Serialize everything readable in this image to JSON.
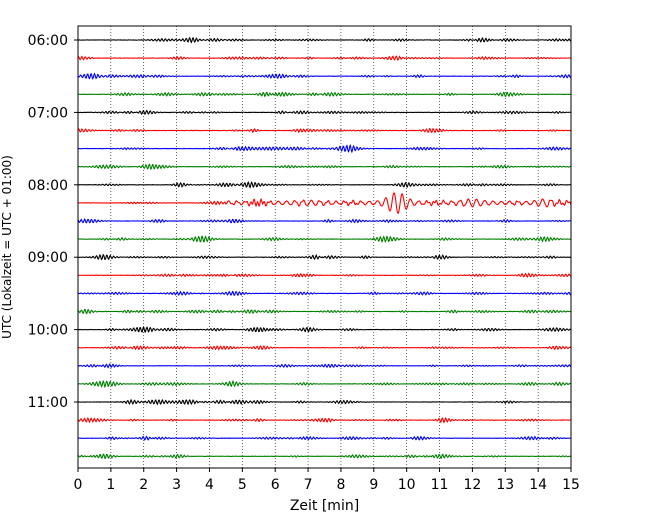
{
  "chart_data": {
    "type": "line",
    "title": "",
    "xlabel": "Zeit  [min]",
    "ylabel": "UTC (Lokalzeit = UTC + 01:00)",
    "xlim": [
      0,
      15
    ],
    "x_ticks": [
      "0",
      "1",
      "2",
      "3",
      "4",
      "5",
      "6",
      "7",
      "8",
      "9",
      "10",
      "11",
      "12",
      "13",
      "14",
      "15"
    ],
    "y_ticks": [
      "06:00",
      "07:00",
      "08:00",
      "09:00",
      "10:00",
      "11:00"
    ],
    "grid": "vertical dotted lines at each minute",
    "trace_interval_minutes": 15,
    "trace_count": 24,
    "start_time": "06:00",
    "color_cycle": [
      "#000000",
      "#ff0000",
      "#0000ff",
      "#008000"
    ],
    "event": {
      "trace_index": 9,
      "trace_start": "08:15",
      "onset_minute": 4.5,
      "peak_minute": 9.7,
      "end_minute": 15,
      "peak_amplitude": 1.0,
      "background_amplitude": 0.1
    }
  }
}
